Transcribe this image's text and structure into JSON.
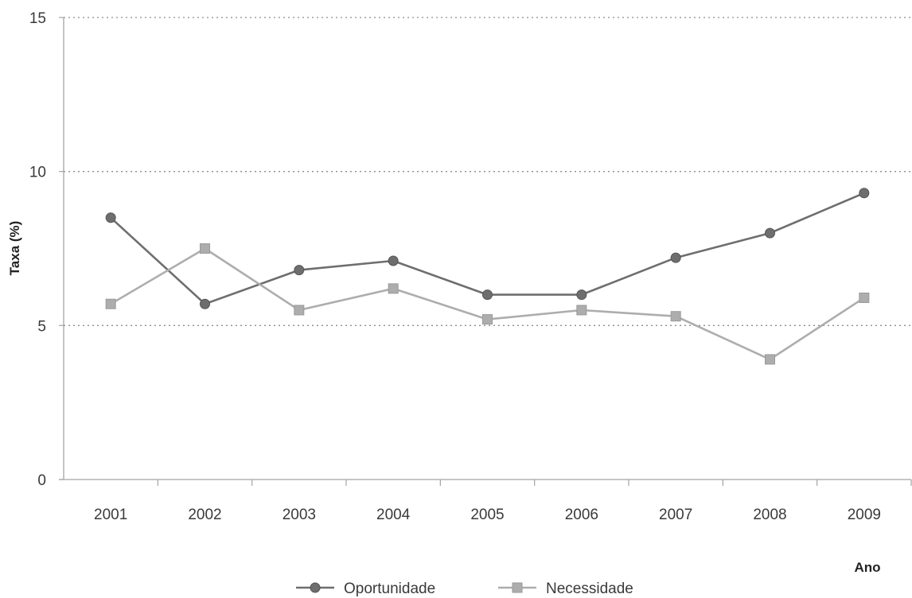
{
  "chart_data": {
    "type": "line",
    "categories": [
      "2001",
      "2002",
      "2003",
      "2004",
      "2005",
      "2006",
      "2007",
      "2008",
      "2009"
    ],
    "series": [
      {
        "name": "Oportunidade",
        "values": [
          8.5,
          5.7,
          6.8,
          7.1,
          6.0,
          6.0,
          7.2,
          8.0,
          9.3
        ],
        "color": "#6e6e6e",
        "marker": "circle"
      },
      {
        "name": "Necessidade",
        "values": [
          5.7,
          7.5,
          5.5,
          6.2,
          5.2,
          5.5,
          5.3,
          3.9,
          5.9
        ],
        "color": "#adadad",
        "marker": "square"
      }
    ],
    "xlabel": "Ano",
    "ylabel": "Taxa (%)",
    "ylim": [
      0,
      15
    ],
    "yticks": [
      0,
      5,
      10,
      15
    ],
    "grid": true,
    "legend": "bottom-center"
  }
}
